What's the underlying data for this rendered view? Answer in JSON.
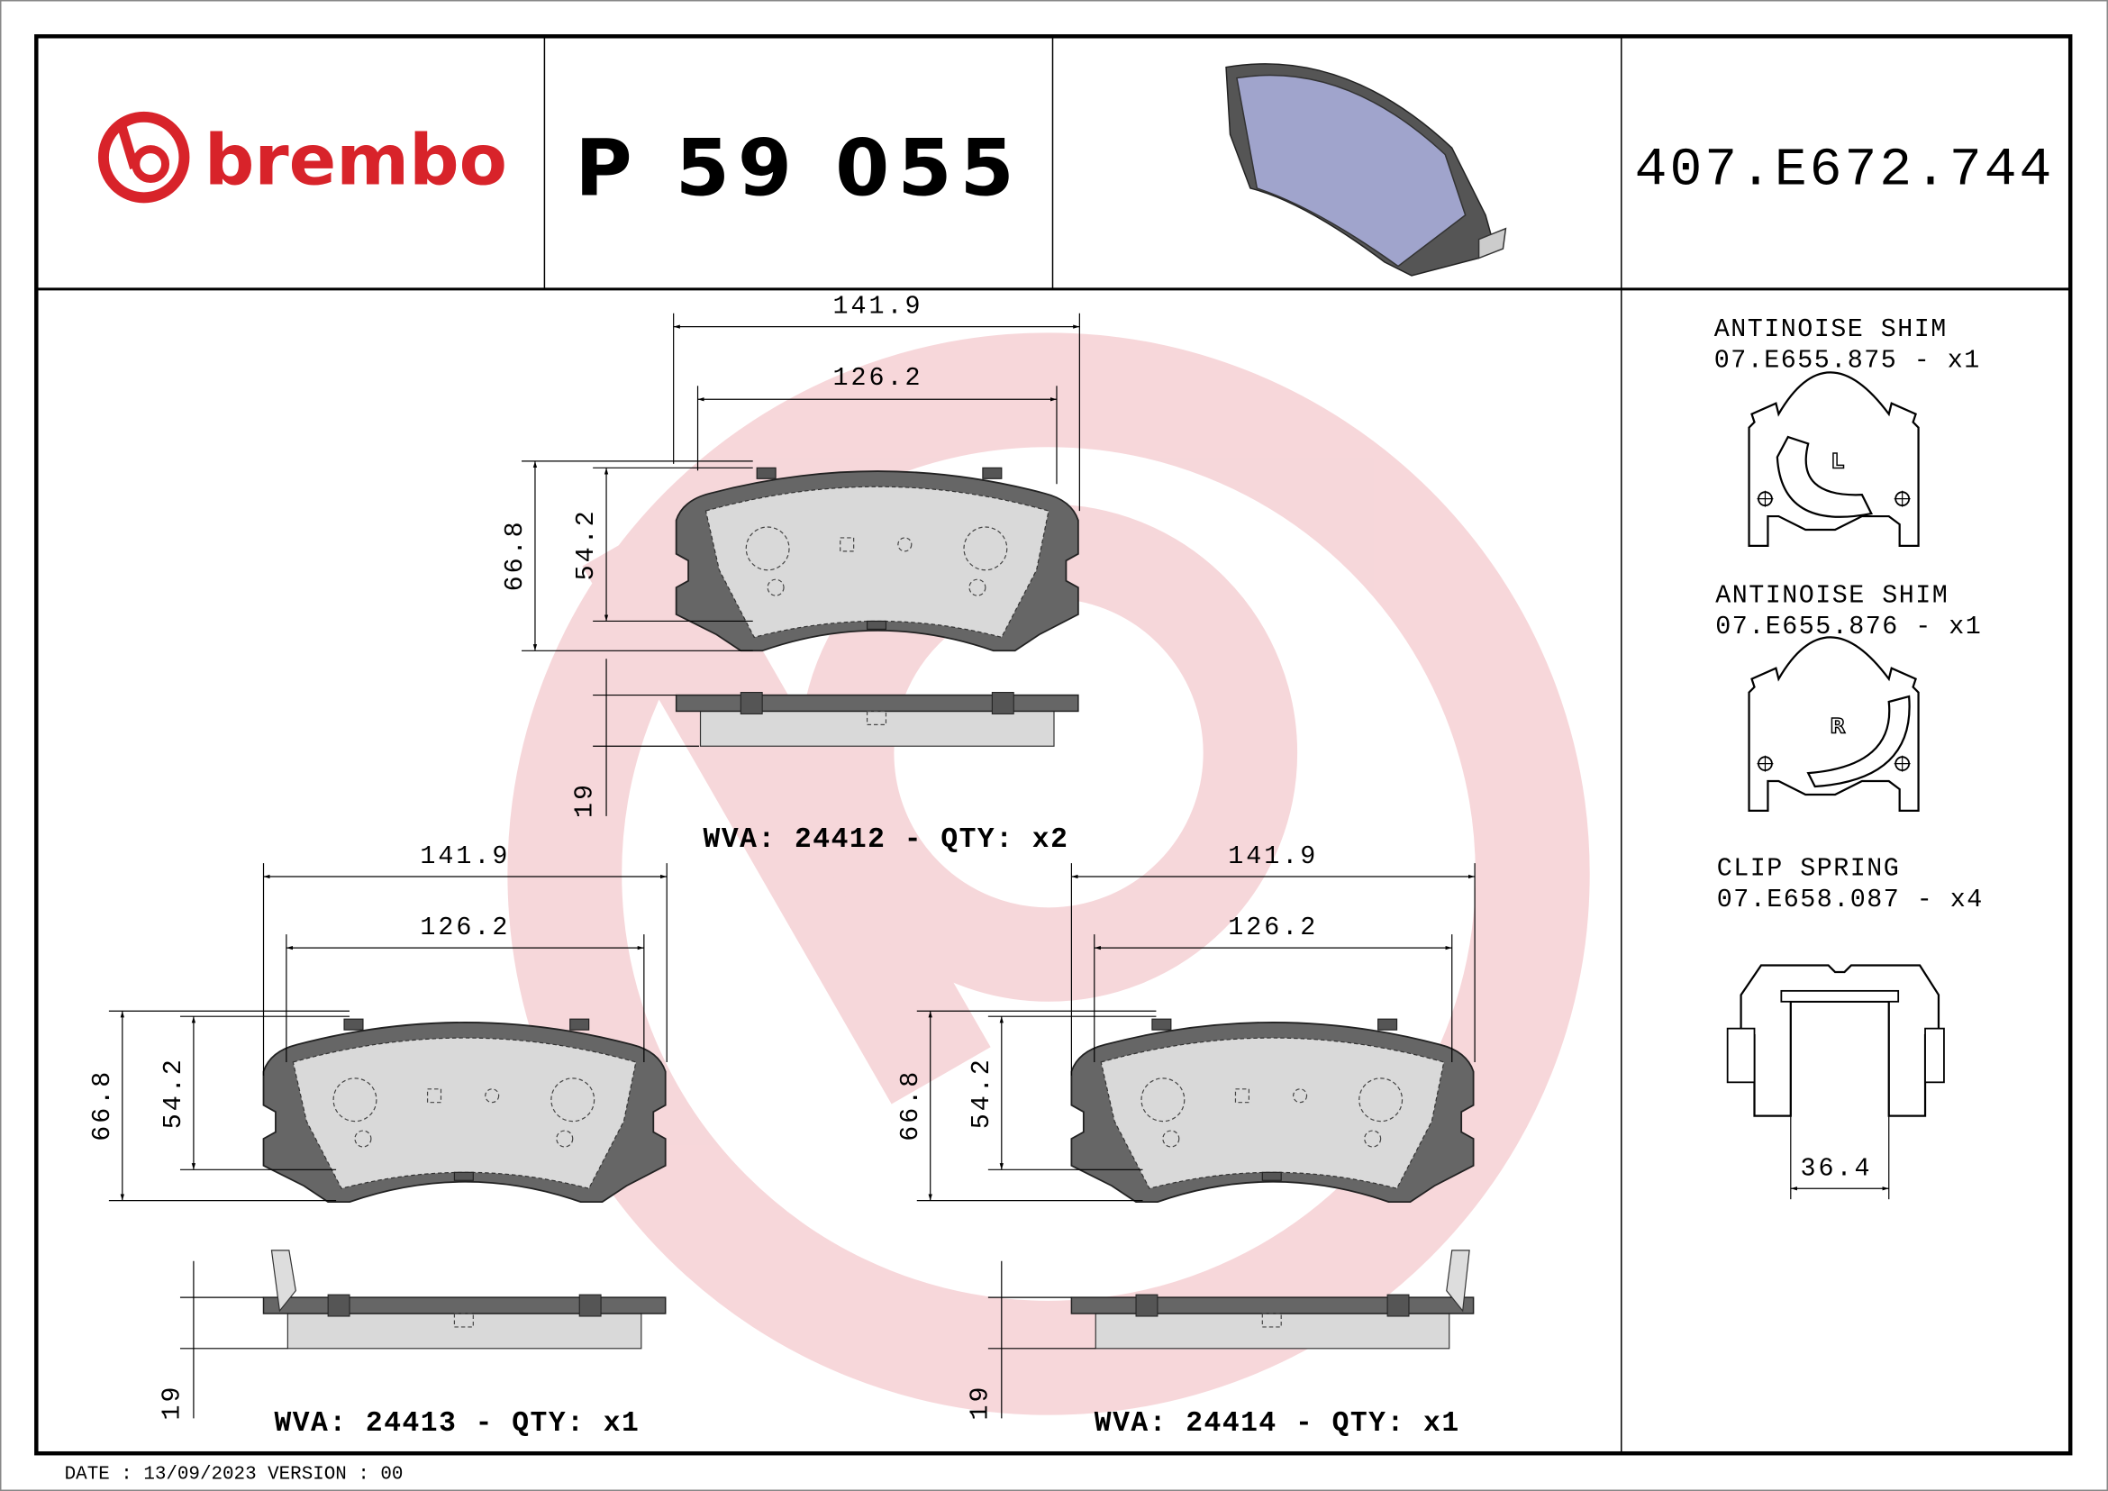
{
  "header": {
    "brand": "brembo",
    "brand_color": "#d8232a",
    "part_number": "P 59 055",
    "reference_code": "407.E672.744"
  },
  "pads": [
    {
      "width_outer": "141.9",
      "width_inner": "126.2",
      "height_outer": "66.8",
      "height_inner": "54.2",
      "thickness": "19",
      "caption": "WVA: 24412 - QTY: x2"
    },
    {
      "width_outer": "141.9",
      "width_inner": "126.2",
      "height_outer": "66.8",
      "height_inner": "54.2",
      "thickness": "19",
      "caption": "WVA: 24413 - QTY: x1"
    },
    {
      "width_outer": "141.9",
      "width_inner": "126.2",
      "height_outer": "66.8",
      "height_inner": "54.2",
      "thickness": "19",
      "caption": "WVA: 24414 - QTY: x1"
    }
  ],
  "accessories": [
    {
      "name": "ANTINOISE SHIM",
      "code": "07.E655.875 - x1",
      "marker": "L"
    },
    {
      "name": "ANTINOISE SHIM",
      "code": "07.E655.876 - x1",
      "marker": "R"
    },
    {
      "name": "CLIP SPRING",
      "code": "07.E658.087 - x4",
      "dimension": "36.4"
    }
  ],
  "footer": {
    "text": "DATE : 13/09/2023 VERSION : 00"
  },
  "colors": {
    "watermark": "#f6d3d6",
    "pad_backplate": "#666666",
    "friction": "#d9d9d9",
    "render": "#a0a4cc"
  }
}
